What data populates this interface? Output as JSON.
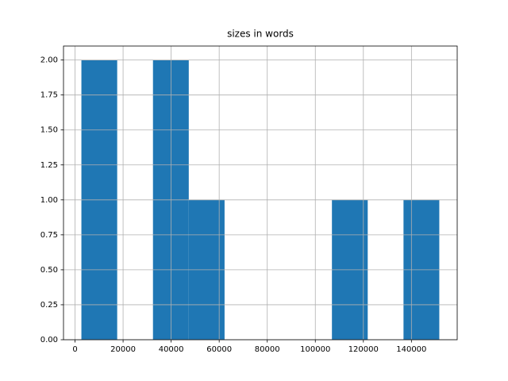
{
  "chart_data": {
    "type": "histogram",
    "title": "sizes in words",
    "bins": [
      2650,
      17545,
      32440,
      47335,
      62230,
      77125,
      92020,
      106915,
      121810,
      136705,
      151600
    ],
    "counts": [
      2,
      0,
      2,
      1,
      0,
      0,
      0,
      1,
      0,
      1
    ],
    "color": "#1f77b4",
    "xlim": [
      -4800,
      159050
    ],
    "xticks": [
      0,
      20000,
      40000,
      60000,
      80000,
      100000,
      120000,
      140000
    ],
    "ylim": [
      0,
      2.1
    ],
    "yticks": [
      {
        "value": 0,
        "label": "0.00"
      },
      {
        "value": 0.25,
        "label": "0.25"
      },
      {
        "value": 0.5,
        "label": "0.50"
      },
      {
        "value": 0.75,
        "label": "0.75"
      },
      {
        "value": 1,
        "label": "1.00"
      },
      {
        "value": 1.25,
        "label": "1.25"
      },
      {
        "value": 1.5,
        "label": "1.50"
      },
      {
        "value": 1.75,
        "label": "1.75"
      },
      {
        "value": 2,
        "label": "2.00"
      }
    ],
    "grid": true
  }
}
